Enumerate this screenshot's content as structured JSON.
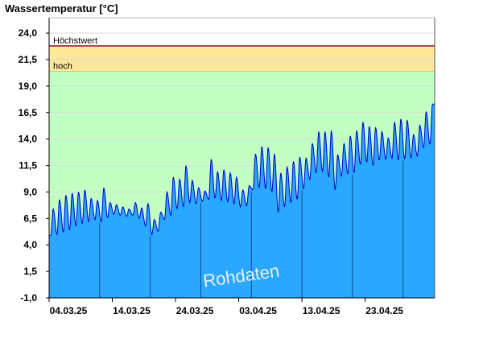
{
  "colors": {
    "background": "#ffffff",
    "area_fill": "#2aa7ff",
    "line": "#0000d0",
    "hoch_band": "#ffe79a",
    "normal_band": "#c2ffc2",
    "highest_line": "#8b0a3f",
    "grid": "#d9d9d9",
    "axis": "#000000",
    "week_line": "#124e8a",
    "watermark": "#ffffff"
  },
  "chart_data": {
    "type": "area",
    "title": "Wassertemperatur [°C]",
    "watermark": "Rohdaten",
    "ylim": [
      -1.0,
      25.0
    ],
    "yticks": [
      "24,0",
      "21,5",
      "19,0",
      "16,5",
      "14,0",
      "11,5",
      "9,0",
      "6,5",
      "4,0",
      "1,5",
      "-1,0"
    ],
    "ytick_values": [
      24.0,
      21.5,
      19.0,
      16.5,
      14.0,
      11.5,
      9.0,
      6.5,
      4.0,
      1.5,
      -1.0
    ],
    "xlim": [
      "2025-03-04",
      "2025-05-04"
    ],
    "xticks": [
      "04.03.25",
      "14.03.25",
      "24.03.25",
      "03.04.25",
      "13.04.25",
      "23.04.25"
    ],
    "xtick_dates": [
      "2025-03-04",
      "2025-03-14",
      "2025-03-24",
      "2025-04-03",
      "2025-04-13",
      "2025-04-23"
    ],
    "thresholds": [
      {
        "label": "Höchstwert",
        "value": 22.8
      },
      {
        "label": "hoch",
        "value": 20.4
      }
    ],
    "series": [
      {
        "daily_min": [
          4.9,
          5.0,
          5.2,
          5.4,
          5.8,
          6.0,
          6.2,
          6.4,
          6.2,
          6.6,
          6.9,
          6.8,
          6.7,
          6.8,
          6.5,
          5.8,
          5.0,
          5.3,
          6.4,
          6.8,
          7.4,
          7.6,
          8.0,
          7.9,
          8.1,
          8.3,
          8.4,
          8.2,
          8.1,
          7.9,
          7.6,
          7.7,
          9.2,
          9.4,
          9.3,
          9.0,
          7.1,
          7.6,
          8.0,
          8.3,
          9.3,
          10.2,
          10.8,
          10.9,
          10.4,
          9.2,
          10.5,
          10.7,
          10.8,
          11.6,
          11.8,
          11.5,
          12.0,
          12.1,
          12.2,
          12.0,
          12.1,
          12.2,
          12.4,
          13.2,
          13.5
        ],
        "daily_max": [
          7.4,
          8.3,
          8.7,
          8.9,
          9.0,
          9.2,
          8.4,
          8.2,
          9.4,
          8.0,
          7.8,
          7.6,
          7.4,
          8.0,
          7.5,
          7.9,
          6.4,
          7.1,
          9.0,
          10.4,
          10.2,
          11.5,
          10.1,
          9.4,
          9.1,
          12.1,
          10.9,
          11.1,
          10.8,
          10.4,
          9.2,
          9.6,
          12.6,
          13.3,
          13.2,
          12.6,
          10.8,
          11.4,
          11.9,
          12.3,
          12.2,
          13.6,
          14.7,
          14.7,
          14.8,
          12.5,
          13.6,
          14.3,
          14.8,
          15.6,
          15.2,
          15.1,
          14.7,
          14.1,
          15.6,
          15.9,
          15.8,
          14.4,
          15.3,
          16.6,
          17.3
        ]
      }
    ]
  }
}
